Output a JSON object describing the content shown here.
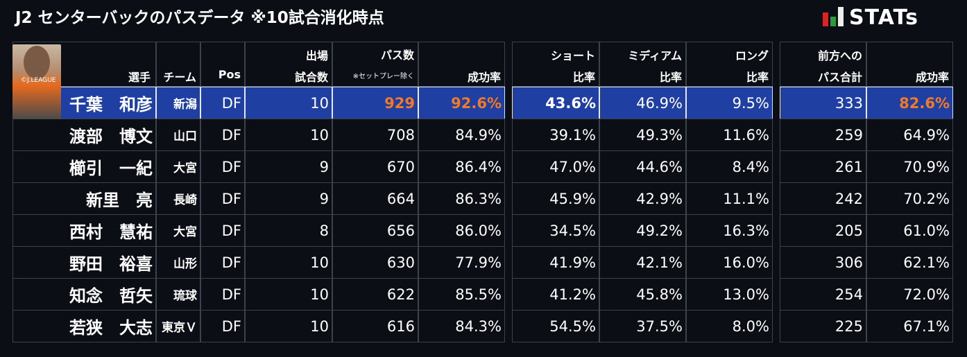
{
  "header": {
    "title": "J2 センターバックのパスデータ ※10試合消化時点",
    "logo": "STATs"
  },
  "photo_credit": "©J.LEAGUE",
  "table": {
    "headers": [
      {
        "lines": [
          "選手"
        ]
      },
      {
        "lines": [
          "チーム"
        ]
      },
      {
        "lines": [
          "Pos"
        ]
      },
      {
        "lines": [
          "出場",
          "試合数"
        ]
      },
      {
        "lines": [
          "パス数"
        ],
        "note": "※セットプレー除く"
      },
      {
        "lines": [
          "成功率"
        ]
      },
      {
        "lines": [
          "ショート",
          "比率"
        ]
      },
      {
        "lines": [
          "ミディアム",
          "比率"
        ]
      },
      {
        "lines": [
          "ロング",
          "比率"
        ]
      },
      {
        "lines": [
          "前方への",
          "パス合計"
        ]
      },
      {
        "lines": [
          "成功率"
        ]
      }
    ],
    "rows": [
      [
        "千葉　和彦",
        "新潟",
        "DF",
        "10",
        "929",
        "92.6%",
        "43.6%",
        "46.9%",
        "9.5%",
        "333",
        "82.6%"
      ],
      [
        "渡部　博文",
        "山口",
        "DF",
        "10",
        "708",
        "84.9%",
        "39.1%",
        "49.3%",
        "11.6%",
        "259",
        "64.9%"
      ],
      [
        "櫛引　一紀",
        "大宮",
        "DF",
        "9",
        "670",
        "86.4%",
        "47.0%",
        "44.6%",
        "8.4%",
        "261",
        "70.9%"
      ],
      [
        "新里　亮",
        "長崎",
        "DF",
        "9",
        "664",
        "86.3%",
        "45.9%",
        "42.9%",
        "11.1%",
        "242",
        "70.2%"
      ],
      [
        "西村　慧祐",
        "大宮",
        "DF",
        "8",
        "656",
        "86.0%",
        "34.5%",
        "49.2%",
        "16.3%",
        "205",
        "61.0%"
      ],
      [
        "野田　裕喜",
        "山形",
        "DF",
        "10",
        "630",
        "77.9%",
        "41.9%",
        "42.1%",
        "16.0%",
        "306",
        "62.1%"
      ],
      [
        "知念　哲矢",
        "琉球",
        "DF",
        "10",
        "622",
        "85.5%",
        "41.2%",
        "45.8%",
        "13.0%",
        "254",
        "72.0%"
      ],
      [
        "若狭　大志",
        "東京Ｖ",
        "DF",
        "10",
        "616",
        "84.3%",
        "54.5%",
        "37.5%",
        "8.0%",
        "225",
        "67.1%"
      ]
    ]
  }
}
